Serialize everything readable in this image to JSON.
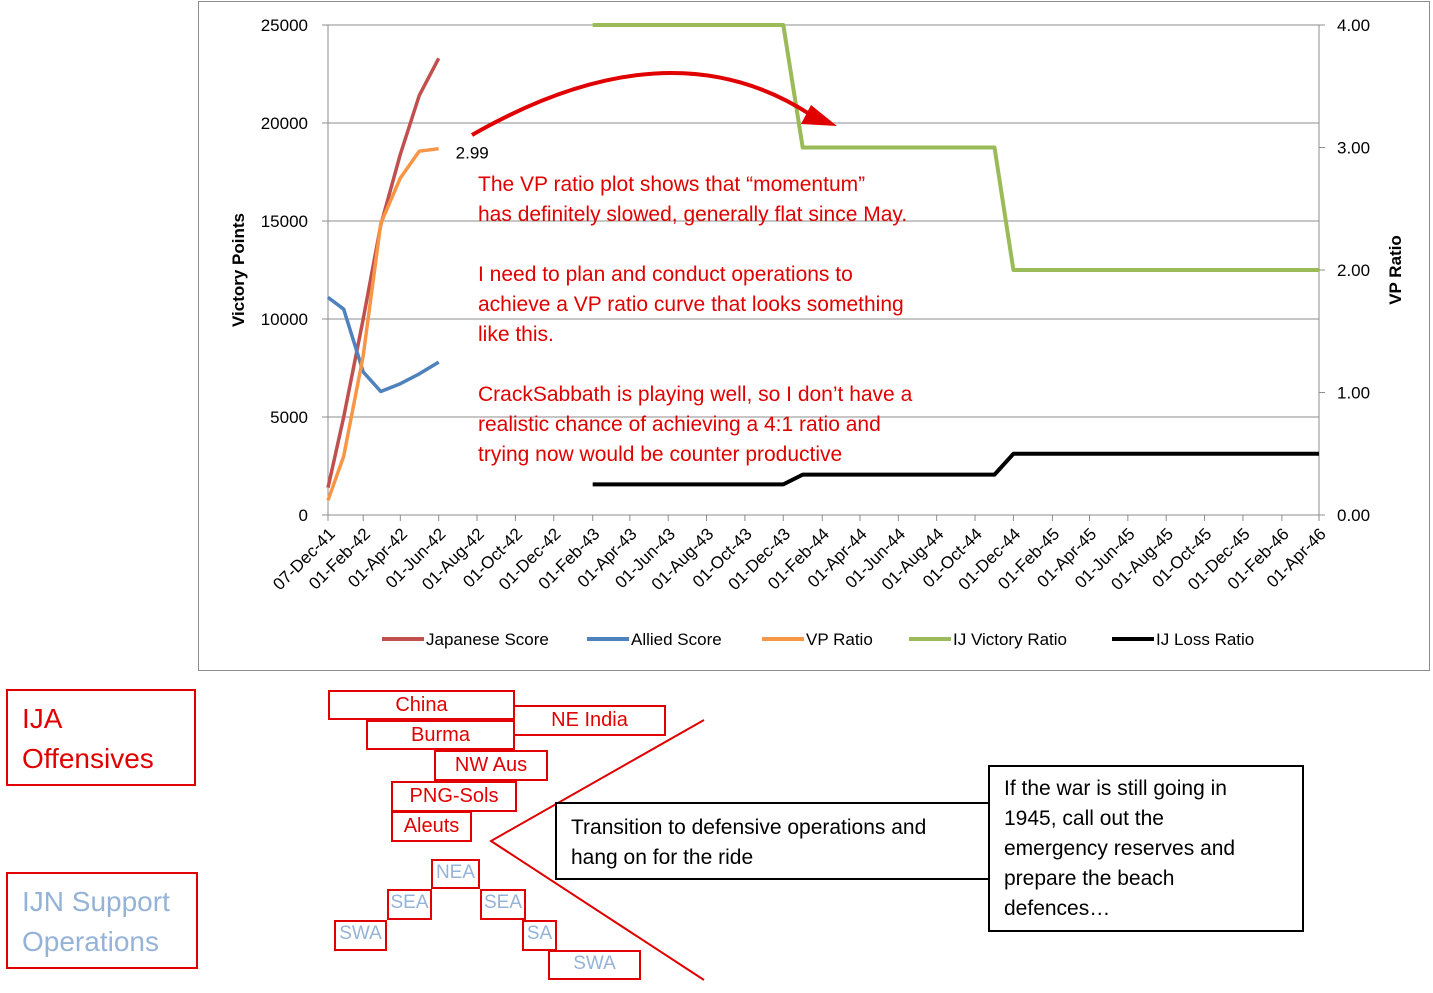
{
  "chart_data": {
    "type": "line",
    "x_tick_labels": [
      "07-Dec-41",
      "01-Feb-42",
      "01-Apr-42",
      "01-Jun-42",
      "01-Aug-42",
      "01-Oct-42",
      "01-Dec-42",
      "01-Feb-43",
      "01-Apr-43",
      "01-Jun-43",
      "01-Aug-43",
      "01-Oct-43",
      "01-Dec-43",
      "01-Feb-44",
      "01-Apr-44",
      "01-Jun-44",
      "01-Aug-44",
      "01-Oct-44",
      "01-Dec-44",
      "01-Feb-45",
      "01-Apr-45",
      "01-Jun-45",
      "01-Aug-45",
      "01-Oct-45",
      "01-Dec-45",
      "01-Feb-46",
      "01-Apr-46"
    ],
    "y_left": {
      "label": "Victory Points",
      "ticks": [
        0,
        5000,
        10000,
        15000,
        20000,
        25000
      ],
      "range": [
        0,
        25000
      ]
    },
    "y_right": {
      "label": "VP Ratio",
      "ticks": [
        "0.00",
        "1.00",
        "2.00",
        "3.00",
        "4.00"
      ],
      "range": [
        0,
        4
      ]
    },
    "grid": true,
    "legend_position": "bottom",
    "series": [
      {
        "name": "Japanese Score",
        "axis": "left",
        "color": "#c0504d",
        "points": [
          [
            "07-Dec-41",
            1400
          ],
          [
            "01-Jan-42",
            5000
          ],
          [
            "01-Feb-42",
            10000
          ],
          [
            "01-Mar-42",
            14800
          ],
          [
            "01-Apr-42",
            18400
          ],
          [
            "01-May-42",
            21400
          ],
          [
            "01-Jun-42",
            23300
          ]
        ]
      },
      {
        "name": "Allied Score",
        "axis": "left",
        "color": "#4f81bd",
        "points": [
          [
            "07-Dec-41",
            11100
          ],
          [
            "01-Jan-42",
            10500
          ],
          [
            "01-Feb-42",
            7300
          ],
          [
            "01-Mar-42",
            6300
          ],
          [
            "01-Apr-42",
            6700
          ],
          [
            "01-May-42",
            7200
          ],
          [
            "01-Jun-42",
            7800
          ]
        ]
      },
      {
        "name": "VP Ratio",
        "axis": "right",
        "color": "#f79646",
        "points": [
          [
            "07-Dec-41",
            0.12
          ],
          [
            "01-Jan-42",
            0.48
          ],
          [
            "01-Feb-42",
            1.3
          ],
          [
            "01-Mar-42",
            2.38
          ],
          [
            "01-Apr-42",
            2.75
          ],
          [
            "01-May-42",
            2.97
          ],
          [
            "01-Jun-42",
            2.99
          ]
        ]
      },
      {
        "name": "IJ Victory Ratio",
        "axis": "right",
        "color": "#9bbb59",
        "points": [
          [
            "01-Feb-43",
            4.0
          ],
          [
            "01-Dec-43",
            4.0
          ],
          [
            "01-Jan-44",
            3.0
          ],
          [
            "01-Nov-44",
            3.0
          ],
          [
            "01-Dec-44",
            2.0
          ],
          [
            "01-Apr-46",
            2.0
          ]
        ]
      },
      {
        "name": "IJ Loss Ratio",
        "axis": "right",
        "color": "#000000",
        "points": [
          [
            "01-Feb-43",
            0.25
          ],
          [
            "01-Dec-43",
            0.25
          ],
          [
            "01-Jan-44",
            0.33
          ],
          [
            "01-Nov-44",
            0.33
          ],
          [
            "01-Dec-44",
            0.5
          ],
          [
            "01-Apr-46",
            0.5
          ]
        ]
      }
    ],
    "data_label": "2.99"
  },
  "annotation": {
    "text": "The VP ratio plot shows that “momentum”\nhas definitely slowed, generally flat since May.\n\nI need to plan and conduct operations to\nachieve a VP ratio curve that looks something\nlike this.\n\nCrackSabbath is playing well, so I don’t have a\nrealistic chance of achieving a 4:1 ratio and\ntrying now would be counter productive",
    "color": "#e00000"
  },
  "ija": {
    "label": "IJA\nOffensives",
    "boxes": [
      "China",
      "NE India",
      "Burma",
      "NW Aus",
      "PNG-Sols",
      "Aleuts"
    ]
  },
  "ijn": {
    "label": "IJN Support\nOperations",
    "boxes": [
      "NEA",
      "SEA",
      "SEA",
      "SWA",
      "SA",
      "SWA"
    ]
  },
  "transition_text": "Transition to defensive operations and\nhang on for the ride",
  "reserve_text": "If the war is still going in\n1945, call out the\nemergency reserves and\nprepare the beach\ndefences…"
}
